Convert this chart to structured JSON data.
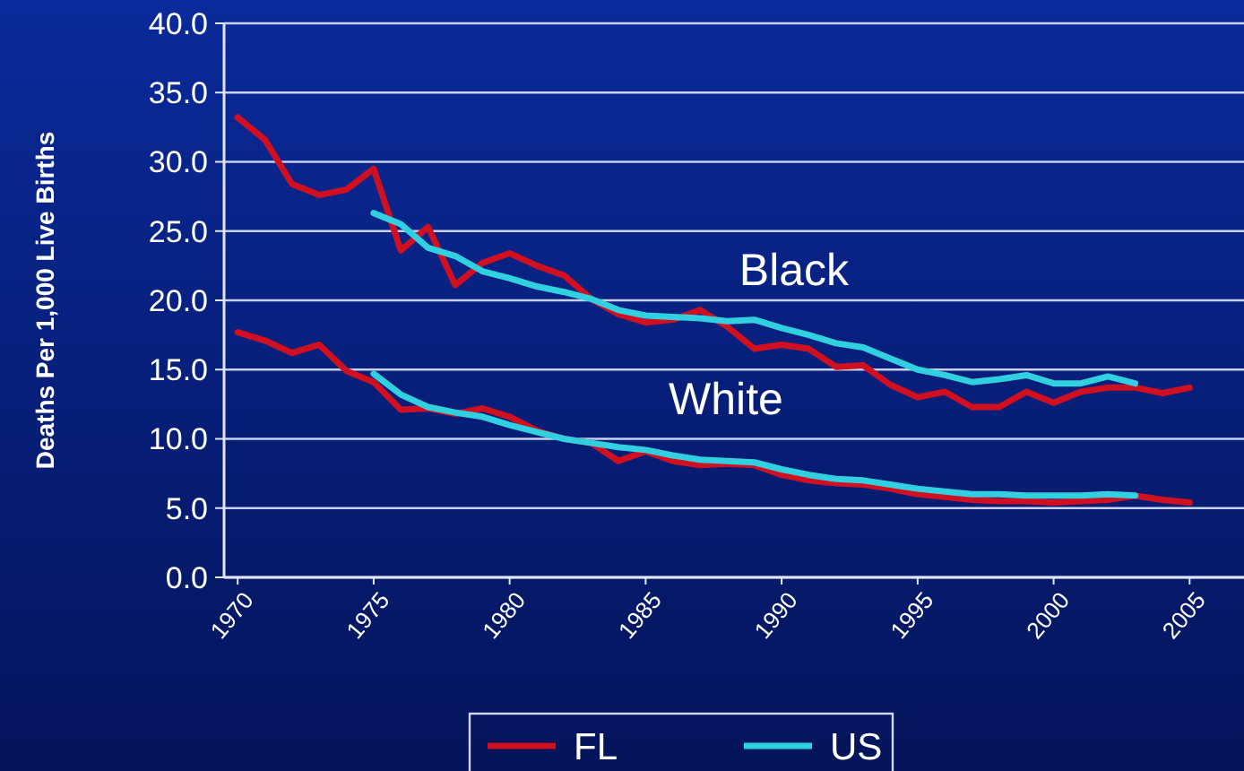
{
  "chart_data": {
    "type": "line",
    "ylabel": "Deaths Per 1,000 Live Births",
    "xlim": [
      1969.5,
      2007
    ],
    "xticks": [
      1970,
      1975,
      1980,
      1985,
      1990,
      1995,
      2000,
      2005
    ],
    "ylim": [
      0,
      40
    ],
    "yticks": [
      {
        "value": 0,
        "label": "0.0"
      },
      {
        "value": 5,
        "label": "5.0"
      },
      {
        "value": 10,
        "label": "10.0"
      },
      {
        "value": 15,
        "label": "15.0"
      },
      {
        "value": 20,
        "label": "20.0"
      },
      {
        "value": 25,
        "label": "25.0"
      },
      {
        "value": 30,
        "label": "30.0"
      },
      {
        "value": 35,
        "label": "35.0"
      },
      {
        "value": 40,
        "label": "40.0"
      }
    ],
    "grid": "y",
    "legend": "bottom",
    "marker": "none",
    "line_style": "solid",
    "annotations": [
      "Black",
      "White"
    ],
    "series": [
      {
        "name": "FL",
        "color": "#d01020",
        "x": [
          1970,
          1971,
          1972,
          1973,
          1974,
          1975,
          1976,
          1977,
          1978,
          1979,
          1980,
          1981,
          1982,
          1983,
          1984,
          1985,
          1986,
          1987,
          1988,
          1989,
          1990,
          1991,
          1992,
          1993,
          1994,
          1995,
          1996,
          1997,
          1998,
          1999,
          2000,
          2001,
          2002,
          2003,
          2004,
          2005
        ],
        "values": [
          33.2,
          31.6,
          28.4,
          27.6,
          28.0,
          29.5,
          23.6,
          25.3,
          21.1,
          22.7,
          23.4,
          22.5,
          21.8,
          20.1,
          19.0,
          18.4,
          18.6,
          19.3,
          18.1,
          16.5,
          16.8,
          16.5,
          15.2,
          15.3,
          13.9,
          13.0,
          13.4,
          12.3,
          12.3,
          13.4,
          12.6,
          13.4,
          13.7,
          13.7,
          13.3,
          13.7
        ]
      },
      {
        "color": "#d01020",
        "x": [
          1970,
          1971,
          1972,
          1973,
          1974,
          1975,
          1976,
          1977,
          1978,
          1979,
          1980,
          1981,
          1982,
          1983,
          1984,
          1985,
          1986,
          1987,
          1988,
          1989,
          1990,
          1991,
          1992,
          1993,
          1994,
          1995,
          1996,
          1997,
          1998,
          1999,
          2000,
          2001,
          2002,
          2003,
          2004,
          2005
        ],
        "values": [
          17.7,
          17.1,
          16.2,
          16.8,
          14.9,
          14.1,
          12.1,
          12.2,
          11.8,
          12.2,
          11.6,
          10.6,
          10.0,
          9.7,
          8.4,
          9.1,
          8.4,
          8.1,
          8.2,
          8.1,
          7.4,
          7.0,
          6.8,
          6.7,
          6.4,
          6.0,
          5.8,
          5.6,
          5.5,
          5.5,
          5.4,
          5.5,
          5.6,
          5.9,
          5.6,
          5.4
        ]
      },
      {
        "name": "US",
        "color": "#30d0e0",
        "x": [
          1975,
          1976,
          1977,
          1978,
          1979,
          1980,
          1981,
          1982,
          1983,
          1984,
          1985,
          1986,
          1987,
          1988,
          1989,
          1990,
          1991,
          1992,
          1993,
          1994,
          1995,
          1996,
          1997,
          1998,
          1999,
          2000,
          2001,
          2002,
          2003
        ],
        "values": [
          26.3,
          25.5,
          23.8,
          23.2,
          22.1,
          21.6,
          21.0,
          20.6,
          20.1,
          19.3,
          18.9,
          18.8,
          18.7,
          18.5,
          18.6,
          18.0,
          17.5,
          16.9,
          16.6,
          15.8,
          15.0,
          14.6,
          14.1,
          14.3,
          14.6,
          14.0,
          14.0,
          14.5,
          14.0
        ]
      },
      {
        "color": "#30d0e0",
        "x": [
          1975,
          1976,
          1977,
          1978,
          1979,
          1980,
          1981,
          1982,
          1983,
          1984,
          1985,
          1986,
          1987,
          1988,
          1989,
          1990,
          1991,
          1992,
          1993,
          1994,
          1995,
          1996,
          1997,
          1998,
          1999,
          2000,
          2001,
          2002,
          2003
        ],
        "values": [
          14.7,
          13.2,
          12.3,
          11.9,
          11.6,
          11.0,
          10.5,
          10.0,
          9.7,
          9.4,
          9.2,
          8.8,
          8.5,
          8.4,
          8.3,
          7.8,
          7.4,
          7.1,
          7.0,
          6.7,
          6.4,
          6.2,
          6.0,
          6.0,
          5.9,
          5.9,
          5.9,
          6.0,
          5.9
        ]
      }
    ]
  }
}
